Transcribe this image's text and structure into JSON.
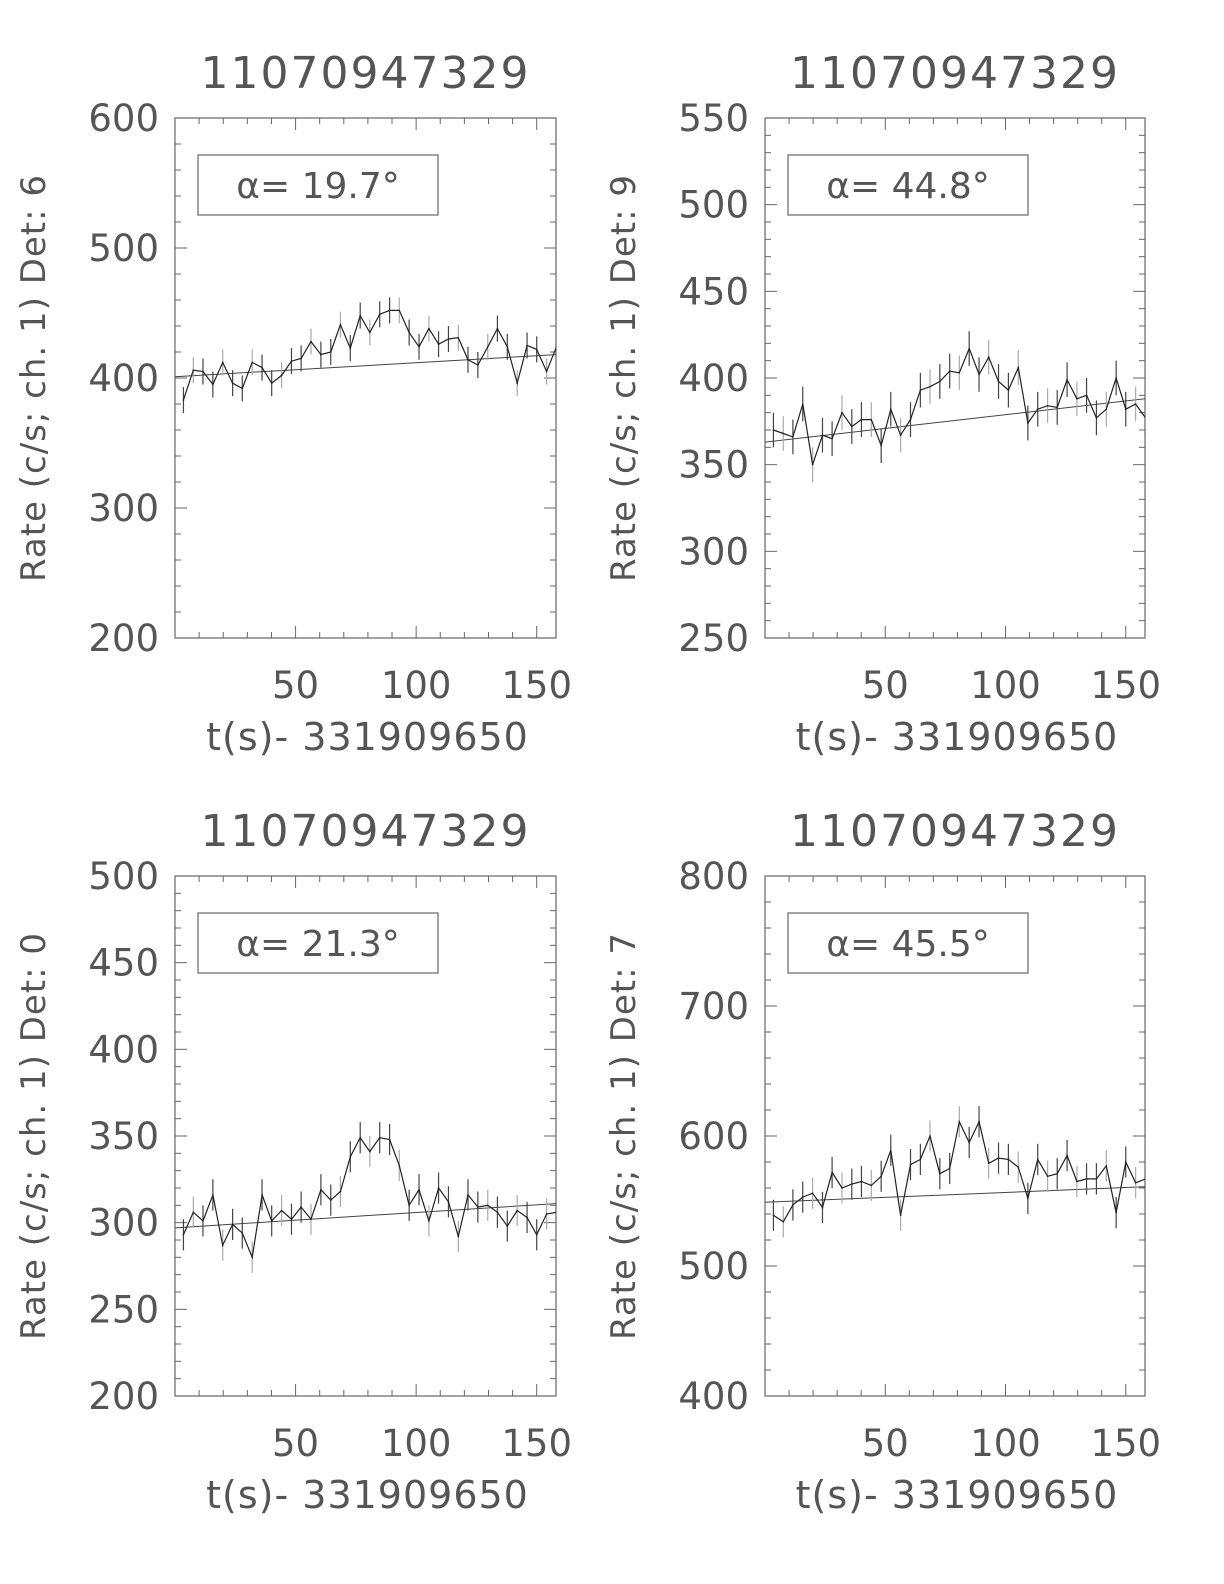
{
  "chart_data": [
    {
      "type": "line",
      "title": "11070947329",
      "ylabel": "Rate (c/s; ch. 1) Det: 6",
      "xlabel": "t(s)- 331909650",
      "annotation": "α= 19.7°",
      "xlim": [
        0,
        158
      ],
      "ylim": [
        200,
        600
      ],
      "xticks": [
        50,
        100,
        150
      ],
      "yticks": [
        200,
        300,
        400,
        500,
        600
      ],
      "x": [
        3.5,
        7.6,
        11.6,
        15.7,
        19.8,
        23.9,
        27.9,
        32,
        36.1,
        40.1,
        44.2,
        48.3,
        52.3,
        56.4,
        60.5,
        64.6,
        68.6,
        72.7,
        76.8,
        80.8,
        84.9,
        89,
        93,
        97.1,
        101.2,
        105.3,
        109.3,
        113.4,
        117.5,
        121.5,
        125.6,
        129.7,
        133.7,
        137.8,
        141.9,
        146,
        150,
        154.1,
        158.2
      ],
      "y": [
        383,
        406,
        405,
        395,
        412,
        396,
        392,
        412,
        408,
        396,
        402,
        413,
        415,
        428,
        418,
        420,
        441,
        423,
        448,
        435,
        449,
        452,
        452,
        435,
        424,
        438,
        426,
        430,
        431,
        414,
        410,
        424,
        438,
        424,
        396,
        425,
        422,
        405,
        424
      ],
      "error": 10,
      "fit": [
        401,
        418
      ]
    },
    {
      "type": "line",
      "title": "11070947329",
      "ylabel": "Rate (c/s; ch. 1) Det: 9",
      "xlabel": "t(s)- 331909650",
      "annotation": "α= 44.8°",
      "xlim": [
        0,
        158
      ],
      "ylim": [
        250,
        550
      ],
      "xticks": [
        50,
        100,
        150
      ],
      "yticks": [
        250,
        300,
        350,
        400,
        450,
        500,
        550
      ],
      "x": [
        3.5,
        7.6,
        11.6,
        15.7,
        19.8,
        23.9,
        27.9,
        32,
        36.1,
        40.1,
        44.2,
        48.3,
        52.3,
        56.4,
        60.5,
        64.6,
        68.6,
        72.7,
        76.8,
        80.8,
        84.9,
        89,
        93,
        97.1,
        101.2,
        105.3,
        109.3,
        113.4,
        117.5,
        121.5,
        125.6,
        129.7,
        133.7,
        137.8,
        141.9,
        146,
        150,
        154.1,
        158.2
      ],
      "y": [
        370,
        368,
        366,
        385,
        350,
        367,
        365,
        380,
        372,
        376,
        376,
        361,
        382,
        367,
        376,
        393,
        395,
        398,
        404,
        403,
        417,
        402,
        412,
        398,
        393,
        406,
        374,
        382,
        384,
        383,
        399,
        388,
        390,
        377,
        382,
        400,
        382,
        385,
        377
      ],
      "error": 10,
      "fit": [
        363,
        388
      ]
    },
    {
      "type": "line",
      "title": "11070947329",
      "ylabel": "Rate (c/s; ch. 1) Det: 0",
      "xlabel": "t(s)- 331909650",
      "annotation": "α= 21.3°",
      "xlim": [
        0,
        158
      ],
      "ylim": [
        200,
        500
      ],
      "xticks": [
        50,
        100,
        150
      ],
      "yticks": [
        200,
        250,
        300,
        350,
        400,
        450,
        500
      ],
      "x": [
        3.5,
        7.6,
        11.6,
        15.7,
        19.8,
        23.9,
        27.9,
        32,
        36.1,
        40.1,
        44.2,
        48.3,
        52.3,
        56.4,
        60.5,
        64.6,
        68.6,
        72.7,
        76.8,
        80.8,
        84.9,
        89,
        93,
        97.1,
        101.2,
        105.3,
        109.3,
        113.4,
        117.5,
        121.5,
        125.6,
        129.7,
        133.7,
        137.8,
        141.9,
        146,
        150,
        154.1,
        158.2
      ],
      "y": [
        293,
        306,
        301,
        316,
        287,
        299,
        294,
        280,
        316,
        301,
        307,
        302,
        309,
        302,
        319,
        313,
        318,
        338,
        349,
        341,
        349,
        348,
        333,
        310,
        319,
        301,
        320,
        312,
        292,
        316,
        309,
        310,
        306,
        298,
        307,
        303,
        293,
        305,
        306
      ],
      "error": 9,
      "fit": [
        297,
        311
      ]
    },
    {
      "type": "line",
      "title": "11070947329",
      "ylabel": "Rate (c/s; ch. 1) Det: 7",
      "xlabel": "t(s)- 331909650",
      "annotation": "α= 45.5°",
      "xlim": [
        0,
        158
      ],
      "ylim": [
        400,
        800
      ],
      "xticks": [
        50,
        100,
        150
      ],
      "yticks": [
        400,
        500,
        600,
        700,
        800
      ],
      "x": [
        3.5,
        7.6,
        11.6,
        15.7,
        19.8,
        23.9,
        27.9,
        32,
        36.1,
        40.1,
        44.2,
        48.3,
        52.3,
        56.4,
        60.5,
        64.6,
        68.6,
        72.7,
        76.8,
        80.8,
        84.9,
        89,
        93,
        97.1,
        101.2,
        105.3,
        109.3,
        113.4,
        117.5,
        121.5,
        125.6,
        129.7,
        133.7,
        137.8,
        141.9,
        146,
        150,
        154.1,
        158.2
      ],
      "y": [
        539,
        534,
        547,
        553,
        556,
        545,
        572,
        560,
        563,
        565,
        562,
        569,
        589,
        539,
        578,
        582,
        600,
        571,
        575,
        611,
        595,
        611,
        579,
        583,
        582,
        576,
        552,
        582,
        569,
        571,
        585,
        565,
        567,
        567,
        577,
        541,
        580,
        564,
        567
      ],
      "error": 12,
      "fit": [
        549,
        561
      ]
    }
  ]
}
